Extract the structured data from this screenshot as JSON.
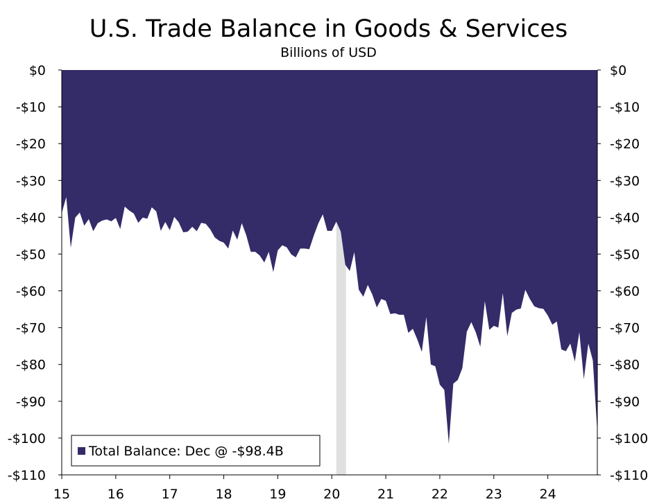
{
  "chart_data": {
    "type": "area",
    "title": "U.S. Trade Balance in Goods & Services",
    "subtitle": "Billions of USD",
    "xlabel": "",
    "ylabel": "",
    "x_tick_labels": [
      "15",
      "16",
      "17",
      "18",
      "19",
      "20",
      "21",
      "22",
      "23",
      "24"
    ],
    "y_tick_labels": [
      "$0",
      "-$10",
      "-$20",
      "-$30",
      "-$40",
      "-$50",
      "-$60",
      "-$70",
      "-$80",
      "-$90",
      "-$100",
      "-$110"
    ],
    "y_tick_values": [
      0,
      -10,
      -20,
      -30,
      -40,
      -50,
      -60,
      -70,
      -80,
      -90,
      -100,
      -110
    ],
    "ylim": [
      -110,
      0
    ],
    "xlim": [
      "2015-01",
      "2024-12"
    ],
    "grid": false,
    "legend_position": "bottom-left",
    "recession_shading": {
      "start": "2020-02",
      "end": "2020-04",
      "color": "#e0e0e0"
    },
    "series": [
      {
        "name": "Total Balance: Dec @ -$98.4B",
        "color": "#342b69",
        "x": [
          "2015-01",
          "2015-02",
          "2015-03",
          "2015-04",
          "2015-05",
          "2015-06",
          "2015-07",
          "2015-08",
          "2015-09",
          "2015-10",
          "2015-11",
          "2015-12",
          "2016-01",
          "2016-02",
          "2016-03",
          "2016-04",
          "2016-05",
          "2016-06",
          "2016-07",
          "2016-08",
          "2016-09",
          "2016-10",
          "2016-11",
          "2016-12",
          "2017-01",
          "2017-02",
          "2017-03",
          "2017-04",
          "2017-05",
          "2017-06",
          "2017-07",
          "2017-08",
          "2017-09",
          "2017-10",
          "2017-11",
          "2017-12",
          "2018-01",
          "2018-02",
          "2018-03",
          "2018-04",
          "2018-05",
          "2018-06",
          "2018-07",
          "2018-08",
          "2018-09",
          "2018-10",
          "2018-11",
          "2018-12",
          "2019-01",
          "2019-02",
          "2019-03",
          "2019-04",
          "2019-05",
          "2019-06",
          "2019-07",
          "2019-08",
          "2019-09",
          "2019-10",
          "2019-11",
          "2019-12",
          "2020-01",
          "2020-02",
          "2020-03",
          "2020-04",
          "2020-05",
          "2020-06",
          "2020-07",
          "2020-08",
          "2020-09",
          "2020-10",
          "2020-11",
          "2020-12",
          "2021-01",
          "2021-02",
          "2021-03",
          "2021-04",
          "2021-05",
          "2021-06",
          "2021-07",
          "2021-08",
          "2021-09",
          "2021-10",
          "2021-11",
          "2021-12",
          "2022-01",
          "2022-02",
          "2022-03",
          "2022-04",
          "2022-05",
          "2022-06",
          "2022-07",
          "2022-08",
          "2022-09",
          "2022-10",
          "2022-11",
          "2022-12",
          "2023-01",
          "2023-02",
          "2023-03",
          "2023-04",
          "2023-05",
          "2023-06",
          "2023-07",
          "2023-08",
          "2023-09",
          "2023-10",
          "2023-11",
          "2023-12",
          "2024-01",
          "2024-02",
          "2024-03",
          "2024-04",
          "2024-05",
          "2024-06",
          "2024-07",
          "2024-08",
          "2024-09",
          "2024-10",
          "2024-11",
          "2024-12"
        ],
        "values": [
          -38.9,
          -34.5,
          -48.3,
          -40.1,
          -38.7,
          -42.3,
          -40.5,
          -43.8,
          -41.6,
          -40.9,
          -40.6,
          -41.1,
          -40.2,
          -43.2,
          -37.1,
          -38.2,
          -39.0,
          -41.5,
          -40.1,
          -40.4,
          -37.3,
          -38.4,
          -43.7,
          -41.3,
          -43.5,
          -39.9,
          -41.4,
          -44.1,
          -43.9,
          -42.6,
          -43.8,
          -41.5,
          -41.8,
          -43.3,
          -45.5,
          -46.4,
          -46.9,
          -48.5,
          -43.6,
          -46.1,
          -41.6,
          -44.9,
          -49.4,
          -49.4,
          -50.4,
          -52.3,
          -49.4,
          -54.9,
          -49.0,
          -47.6,
          -48.2,
          -50.1,
          -50.9,
          -48.5,
          -48.5,
          -48.7,
          -45.0,
          -41.7,
          -39.2,
          -43.7,
          -43.7,
          -41.2,
          -43.9,
          -52.9,
          -54.6,
          -49.5,
          -59.7,
          -61.6,
          -58.4,
          -61.0,
          -64.5,
          -62.2,
          -62.7,
          -66.3,
          -66.1,
          -66.5,
          -66.5,
          -71.4,
          -70.3,
          -73.2,
          -76.6,
          -67.1,
          -80.0,
          -80.5,
          -85.5,
          -86.9,
          -101.6,
          -85.2,
          -84.2,
          -81.0,
          -71.1,
          -68.5,
          -71.3,
          -75.2,
          -62.8,
          -70.6,
          -69.5,
          -70.0,
          -60.6,
          -72.3,
          -66.0,
          -65.1,
          -64.8,
          -59.7,
          -62.2,
          -64.2,
          -64.7,
          -64.9,
          -66.7,
          -69.2,
          -68.3,
          -75.9,
          -76.4,
          -74.3,
          -79.2,
          -71.2,
          -84.0,
          -74.3,
          -78.9,
          -98.4
        ]
      }
    ]
  }
}
